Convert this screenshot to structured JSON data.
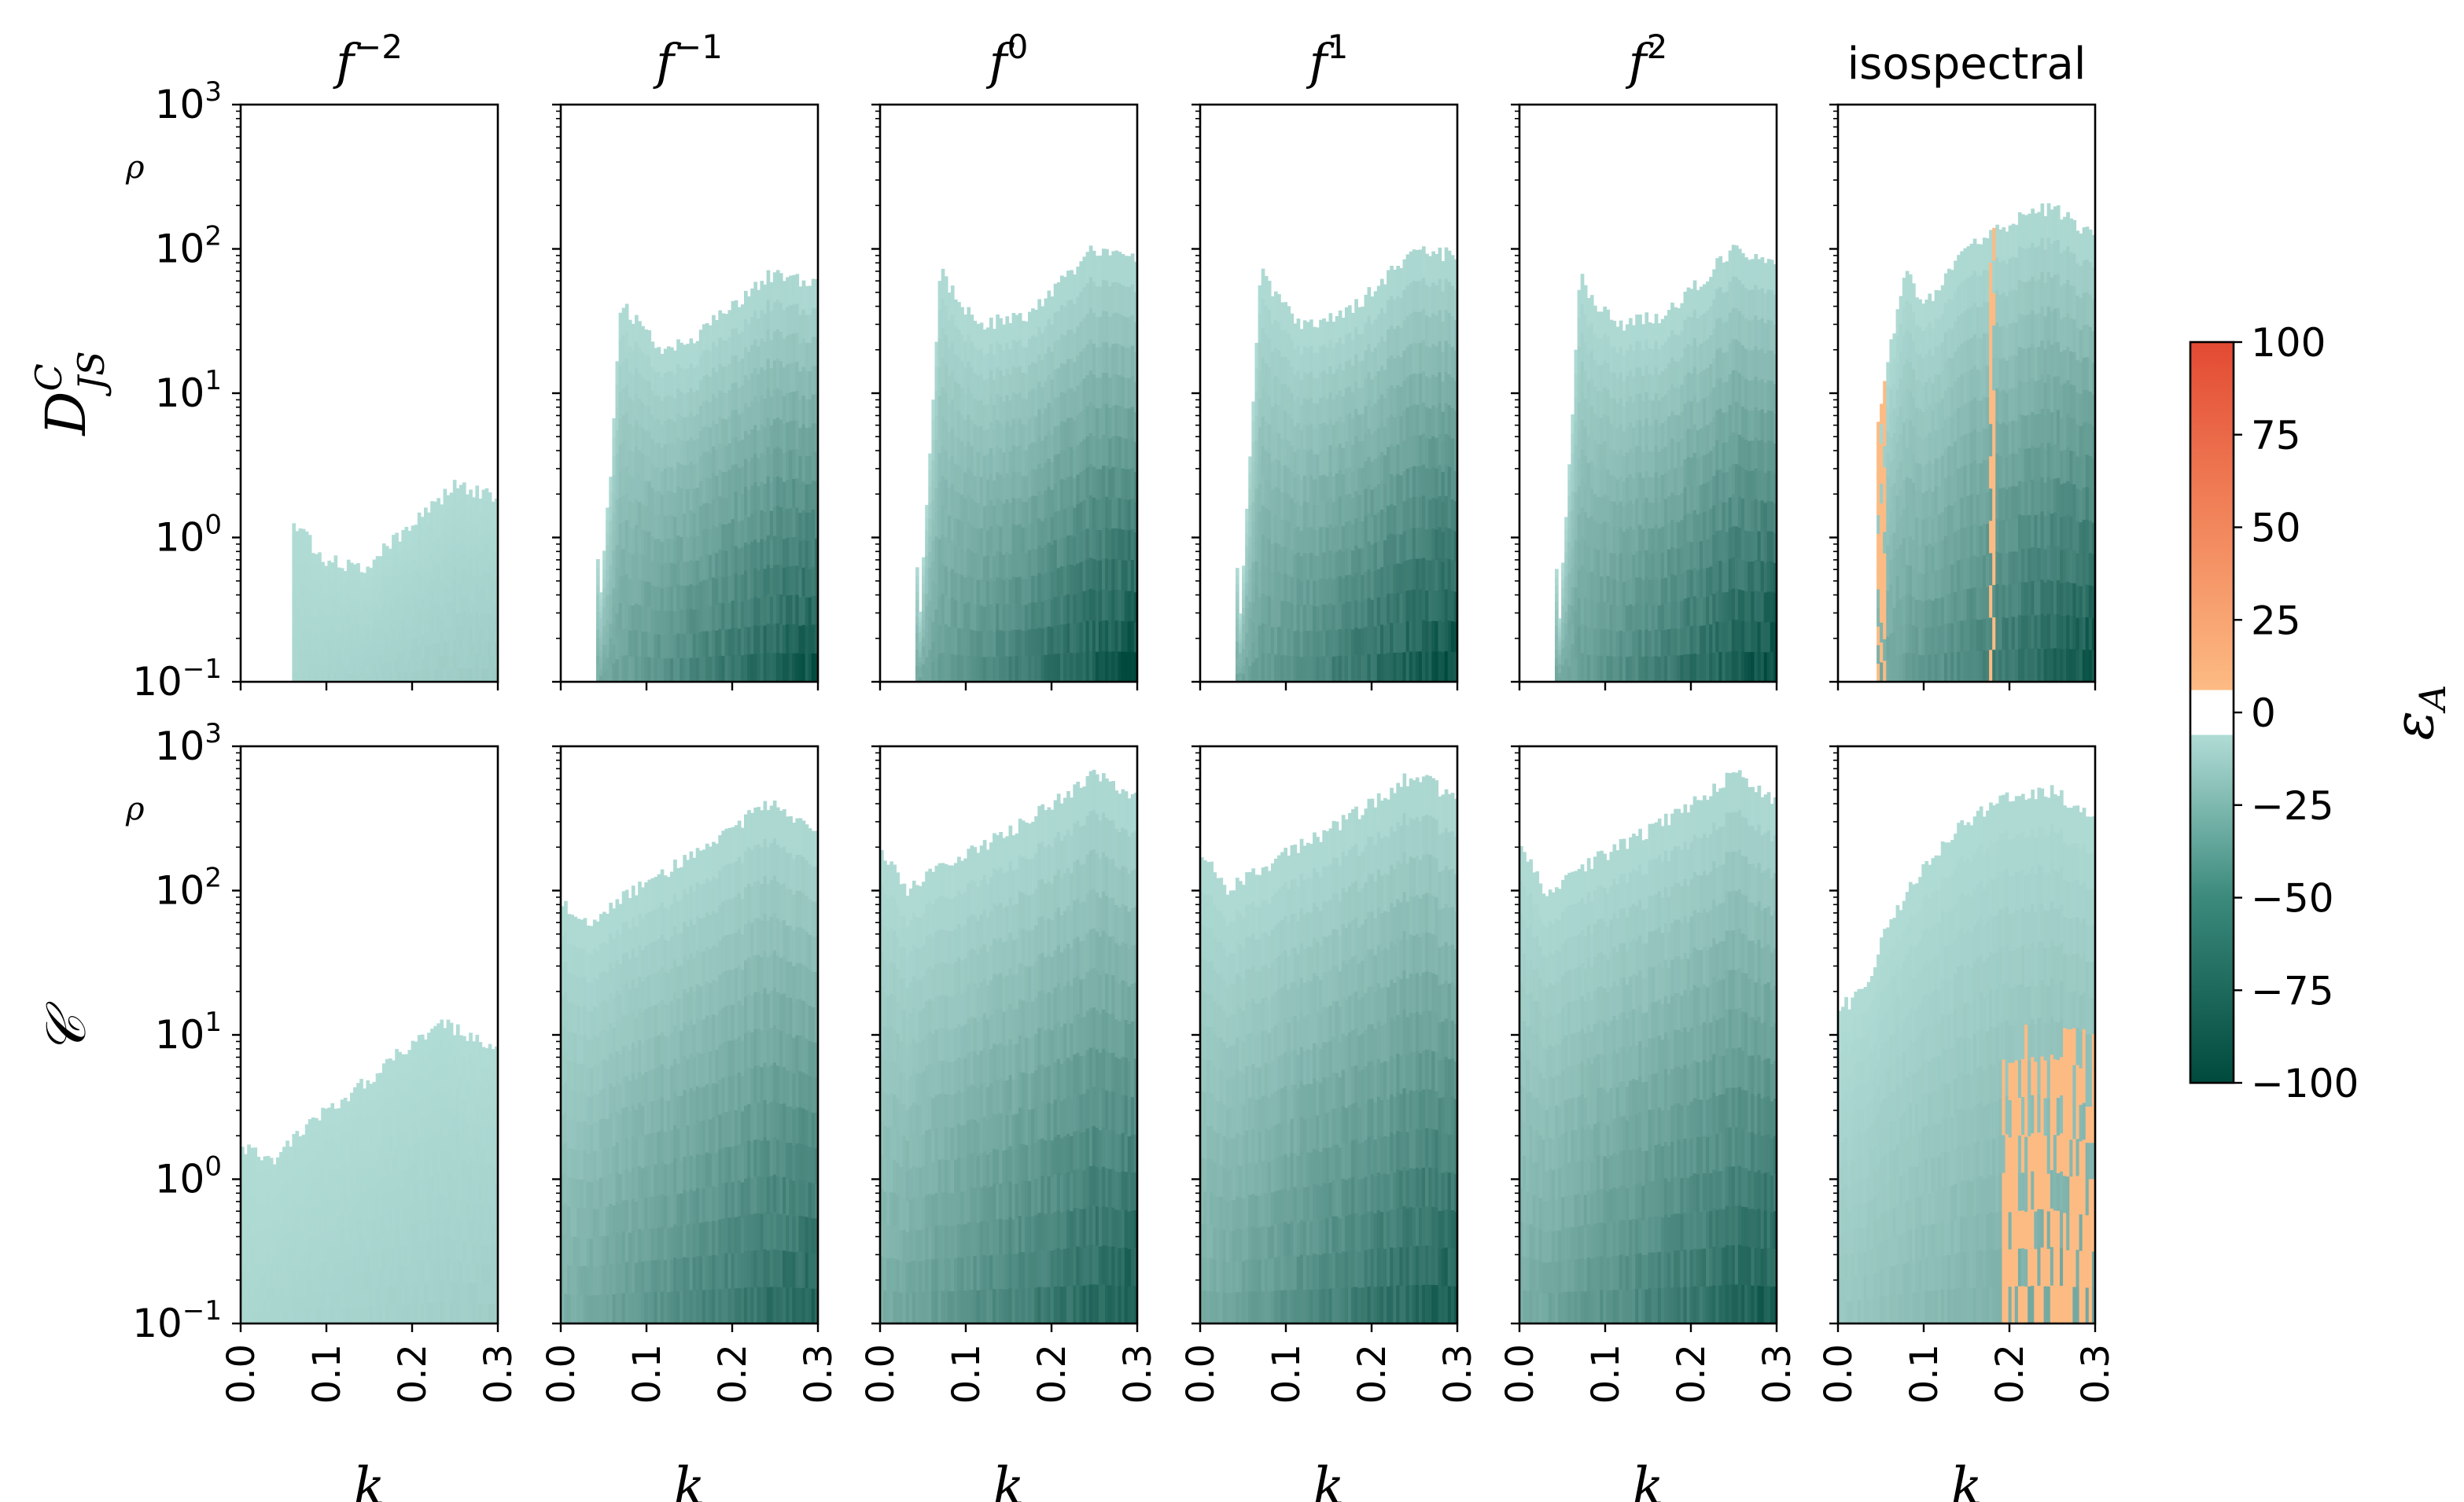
{
  "chart_data": {
    "type": "heatmap",
    "grid": false,
    "column_titles": [
      {
        "base": "f",
        "exp": "−2"
      },
      {
        "base": "f",
        "exp": "−1"
      },
      {
        "base": "f",
        "exp": "0"
      },
      {
        "base": "f",
        "exp": "1"
      },
      {
        "base": "f",
        "exp": "2"
      },
      {
        "base": "isospectral",
        "exp": ""
      }
    ],
    "row_labels": [
      {
        "main": "D",
        "sub": "JS",
        "sup": "C"
      },
      {
        "main": "𝒞",
        "sub": "",
        "sup": ""
      }
    ],
    "xlabel": "k",
    "ylabel": "ρ",
    "xlim": [
      0.0,
      0.3
    ],
    "xticks": [
      "0.0",
      "0.1",
      "0.2",
      "0.3"
    ],
    "ylim": [
      0.1,
      1000
    ],
    "yscale": "log",
    "yticks": [
      {
        "base": "10",
        "exp": "−1"
      },
      {
        "base": "10",
        "exp": "0"
      },
      {
        "base": "10",
        "exp": "1"
      },
      {
        "base": "10",
        "exp": "2"
      },
      {
        "base": "10",
        "exp": "3"
      }
    ],
    "colorbar": {
      "label": "ε",
      "label_sub": "A",
      "range": [
        -100,
        100
      ],
      "ticks": [
        "100",
        "75",
        "50",
        "25",
        "0",
        "−25",
        "−50",
        "−75",
        "−100"
      ],
      "colors": {
        "neg_strong": "#00493d",
        "neg_weak": "#b1dcd6",
        "zero": "#ffffff",
        "pos_weak": "#fdbb84",
        "pos_strong": "#e34a33"
      }
    },
    "panels": [
      {
        "row": 0,
        "col": 0,
        "k_onset": 0.06,
        "top_rho": [
          [
            0.06,
            1.3
          ],
          [
            0.07,
            1.1
          ],
          [
            0.1,
            0.7
          ],
          [
            0.14,
            0.6
          ],
          [
            0.2,
            1.2
          ],
          [
            0.25,
            2.3
          ],
          [
            0.3,
            1.9
          ]
        ],
        "darkness": 0.12
      },
      {
        "row": 0,
        "col": 1,
        "k_onset": 0.04,
        "top_rho": [
          [
            0.04,
            3
          ],
          [
            0.045,
            0.3
          ],
          [
            0.06,
            4
          ],
          [
            0.07,
            45
          ],
          [
            0.09,
            30
          ],
          [
            0.12,
            20
          ],
          [
            0.16,
            25
          ],
          [
            0.24,
            65
          ],
          [
            0.3,
            60
          ]
        ],
        "darkness": 0.95
      },
      {
        "row": 0,
        "col": 2,
        "k_onset": 0.04,
        "top_rho": [
          [
            0.04,
            5
          ],
          [
            0.045,
            0.2
          ],
          [
            0.06,
            6
          ],
          [
            0.07,
            70
          ],
          [
            0.09,
            45
          ],
          [
            0.12,
            30
          ],
          [
            0.17,
            35
          ],
          [
            0.25,
            100
          ],
          [
            0.3,
            85
          ]
        ],
        "darkness": 1.0
      },
      {
        "row": 0,
        "col": 3,
        "k_onset": 0.04,
        "top_rho": [
          [
            0.04,
            5
          ],
          [
            0.045,
            0.2
          ],
          [
            0.06,
            5
          ],
          [
            0.07,
            70
          ],
          [
            0.09,
            45
          ],
          [
            0.12,
            30
          ],
          [
            0.17,
            35
          ],
          [
            0.25,
            100
          ],
          [
            0.3,
            90
          ]
        ],
        "darkness": 1.0
      },
      {
        "row": 0,
        "col": 4,
        "k_onset": 0.04,
        "top_rho": [
          [
            0.04,
            5
          ],
          [
            0.045,
            0.2
          ],
          [
            0.06,
            5
          ],
          [
            0.07,
            65
          ],
          [
            0.09,
            40
          ],
          [
            0.12,
            30
          ],
          [
            0.17,
            35
          ],
          [
            0.25,
            100
          ],
          [
            0.3,
            85
          ]
        ],
        "darkness": 1.0
      },
      {
        "row": 0,
        "col": 5,
        "k_onset": 0.045,
        "top_rho": [
          [
            0.045,
            5
          ],
          [
            0.06,
            20
          ],
          [
            0.08,
            70
          ],
          [
            0.1,
            40
          ],
          [
            0.15,
            100
          ],
          [
            0.2,
            150
          ],
          [
            0.25,
            200
          ],
          [
            0.3,
            120
          ]
        ],
        "darkness": 0.95,
        "positive_regions": "orange streaks near k≈0.05 and k≈0.18"
      },
      {
        "row": 1,
        "col": 0,
        "k_onset": 0.0,
        "top_rho": [
          [
            0.0,
            1.8
          ],
          [
            0.03,
            1.3
          ],
          [
            0.06,
            1.8
          ],
          [
            0.1,
            3
          ],
          [
            0.15,
            5
          ],
          [
            0.2,
            9
          ],
          [
            0.24,
            12
          ],
          [
            0.3,
            8
          ]
        ],
        "darkness": 0.1
      },
      {
        "row": 1,
        "col": 1,
        "k_onset": 0.0,
        "top_rho": [
          [
            0.0,
            80
          ],
          [
            0.03,
            60
          ],
          [
            0.06,
            80
          ],
          [
            0.1,
            110
          ],
          [
            0.15,
            170
          ],
          [
            0.2,
            270
          ],
          [
            0.24,
            400
          ],
          [
            0.3,
            280
          ]
        ],
        "darkness": 0.85
      },
      {
        "row": 1,
        "col": 2,
        "k_onset": 0.0,
        "top_rho": [
          [
            0.0,
            200
          ],
          [
            0.03,
            100
          ],
          [
            0.06,
            130
          ],
          [
            0.1,
            180
          ],
          [
            0.15,
            260
          ],
          [
            0.2,
            400
          ],
          [
            0.25,
            650
          ],
          [
            0.3,
            430
          ]
        ],
        "darkness": 0.9
      },
      {
        "row": 1,
        "col": 3,
        "k_onset": 0.0,
        "top_rho": [
          [
            0.0,
            200
          ],
          [
            0.03,
            100
          ],
          [
            0.06,
            130
          ],
          [
            0.1,
            180
          ],
          [
            0.15,
            260
          ],
          [
            0.2,
            400
          ],
          [
            0.25,
            650
          ],
          [
            0.3,
            430
          ]
        ],
        "darkness": 0.9
      },
      {
        "row": 1,
        "col": 4,
        "k_onset": 0.0,
        "top_rho": [
          [
            0.0,
            200
          ],
          [
            0.03,
            100
          ],
          [
            0.06,
            130
          ],
          [
            0.1,
            180
          ],
          [
            0.15,
            260
          ],
          [
            0.2,
            400
          ],
          [
            0.25,
            650
          ],
          [
            0.3,
            430
          ]
        ],
        "darkness": 0.9
      },
      {
        "row": 1,
        "col": 5,
        "k_onset": 0.0,
        "top_rho": [
          [
            0.0,
            15
          ],
          [
            0.03,
            20
          ],
          [
            0.06,
            60
          ],
          [
            0.1,
            150
          ],
          [
            0.15,
            300
          ],
          [
            0.2,
            450
          ],
          [
            0.25,
            500
          ],
          [
            0.3,
            300
          ]
        ],
        "darkness": 0.4,
        "positive_regions": "orange region k≈0.2–0.3, ρ≈0.1–10"
      }
    ]
  }
}
